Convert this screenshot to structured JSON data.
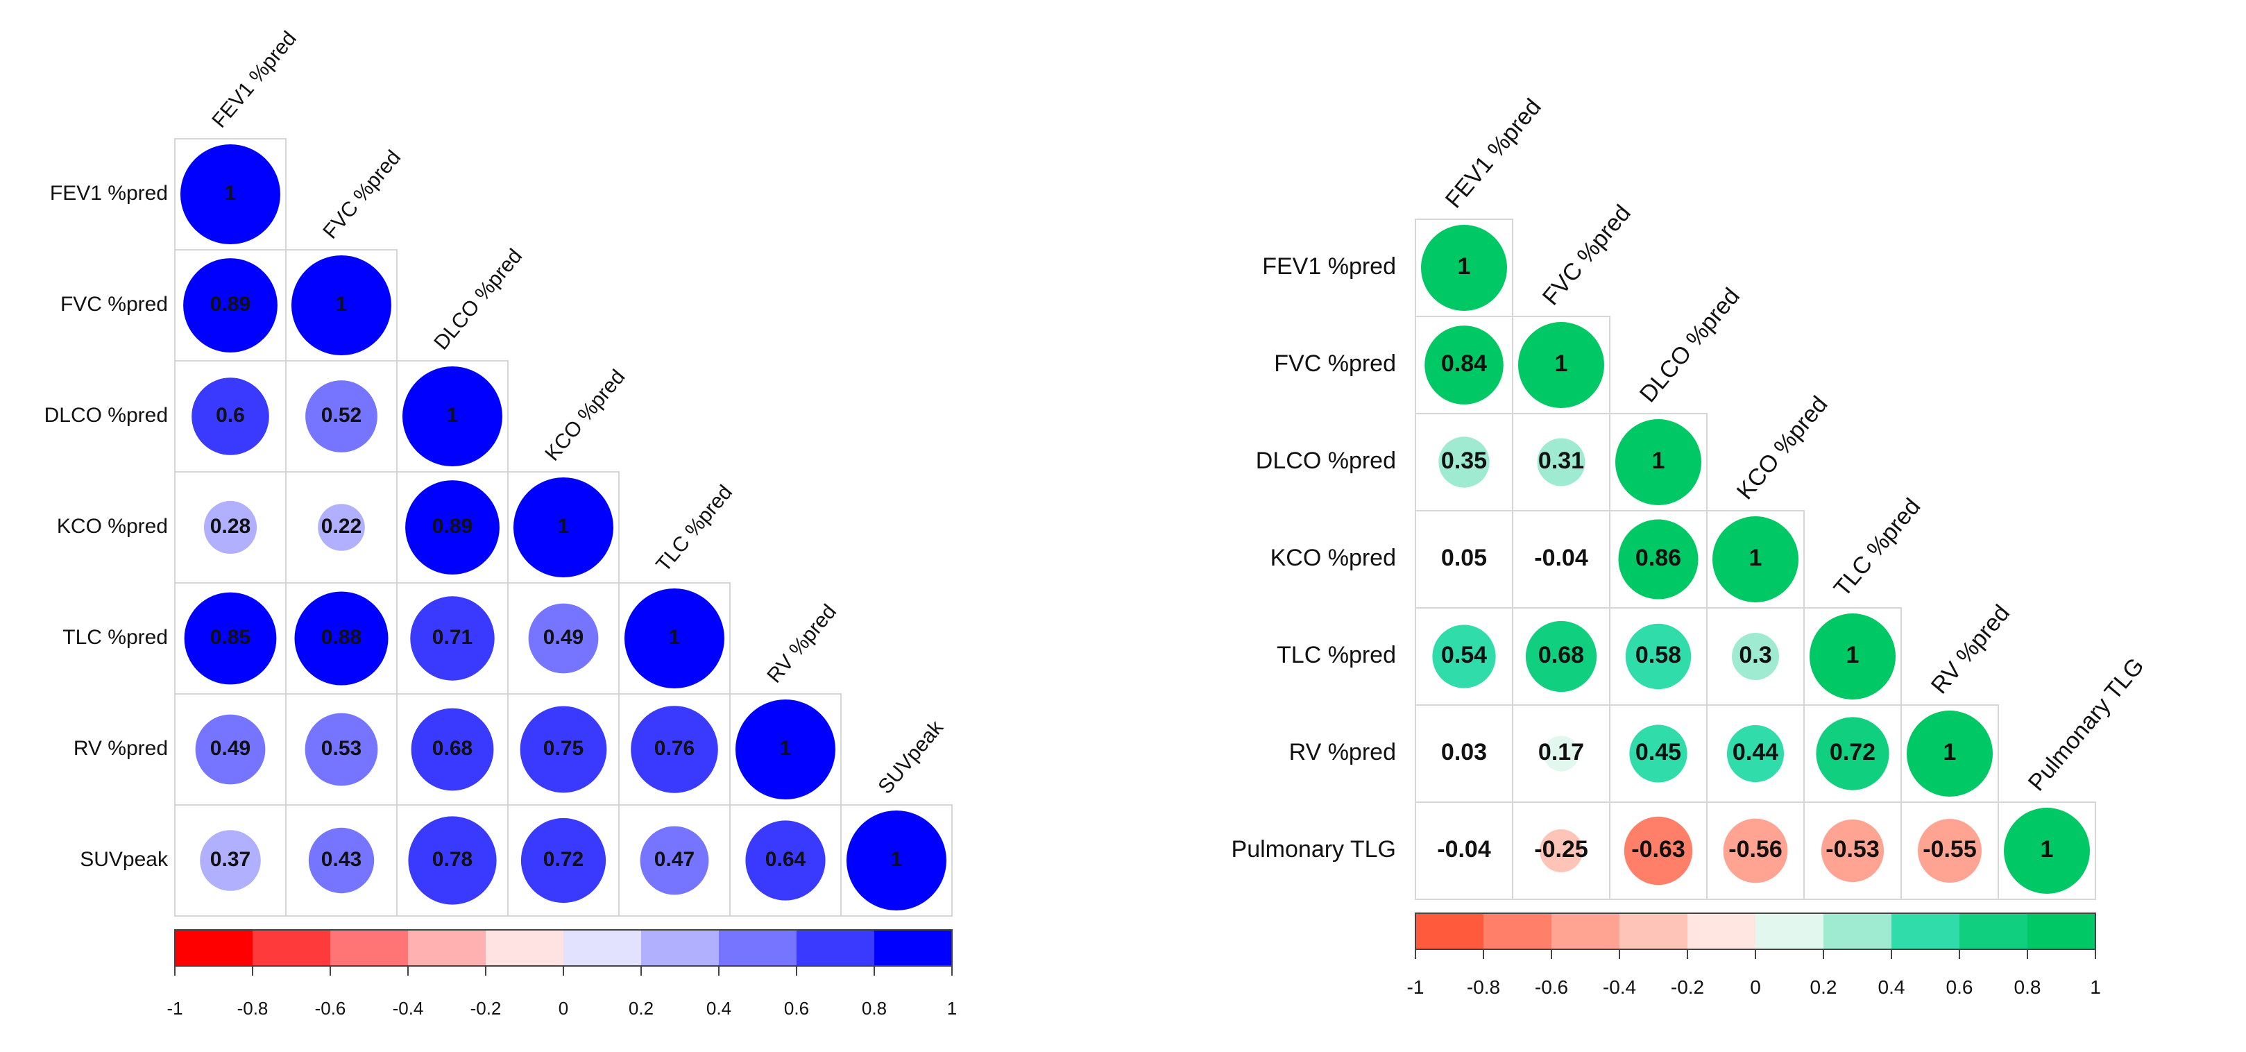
{
  "chart_data": [
    {
      "type": "heatmap",
      "subtype": "correlation-circle-matrix",
      "variables": [
        "FEV1 %pred",
        "FVC %pred",
        "DLCO %pred",
        "KCO %pred",
        "TLC %pred",
        "RV %pred",
        "SUVpeak"
      ],
      "matrix": [
        [
          1
        ],
        [
          0.89,
          1
        ],
        [
          0.6,
          0.52,
          1
        ],
        [
          0.28,
          0.22,
          0.89,
          1
        ],
        [
          0.85,
          0.88,
          0.71,
          0.49,
          1
        ],
        [
          0.49,
          0.53,
          0.68,
          0.75,
          0.76,
          1
        ],
        [
          0.37,
          0.43,
          0.78,
          0.72,
          0.47,
          0.64,
          1
        ]
      ],
      "cell_labels": [
        [
          "1"
        ],
        [
          "0.89",
          "1"
        ],
        [
          "0.6",
          "0.52",
          "1"
        ],
        [
          "0.28",
          "0.22",
          "0.89",
          "1"
        ],
        [
          "0.85",
          "0.88",
          "0.71",
          "0.49",
          "1"
        ],
        [
          "0.49",
          "0.53",
          "0.68",
          "0.75",
          "0.76",
          "1"
        ],
        [
          "0.37",
          "0.43",
          "0.78",
          "0.72",
          "0.47",
          "0.64",
          "1"
        ]
      ],
      "colorbar": {
        "range": [
          -1,
          1
        ],
        "ticks": [
          "-1",
          "-0.8",
          "-0.6",
          "-0.4",
          "-0.2",
          "0",
          "0.2",
          "0.4",
          "0.6",
          "0.8",
          "1"
        ],
        "bins": [
          "#ff0000",
          "#ff3a3a",
          "#ff7575",
          "#ffb0b0",
          "#ffe2e2",
          "#e2e2ff",
          "#b0b0ff",
          "#7575ff",
          "#3a3aff",
          "#0000ff"
        ]
      },
      "circle_min_value": 0.1
    },
    {
      "type": "heatmap",
      "subtype": "correlation-circle-matrix",
      "variables": [
        "FEV1 %pred",
        "FVC %pred",
        "DLCO %pred",
        "KCO %pred",
        "TLC %pred",
        "RV %pred",
        "Pulmonary TLG"
      ],
      "matrix": [
        [
          1
        ],
        [
          0.84,
          1
        ],
        [
          0.35,
          0.31,
          1
        ],
        [
          0.05,
          -0.04,
          0.86,
          1
        ],
        [
          0.54,
          0.68,
          0.58,
          0.3,
          1
        ],
        [
          0.03,
          0.17,
          0.45,
          0.44,
          0.72,
          1
        ],
        [
          -0.04,
          -0.25,
          -0.63,
          -0.56,
          -0.53,
          -0.55,
          1
        ]
      ],
      "cell_labels": [
        [
          "1"
        ],
        [
          "0.84",
          "1"
        ],
        [
          "0.35",
          "0.31",
          "1"
        ],
        [
          "0.05",
          "-0.04",
          "0.86",
          "1"
        ],
        [
          "0.54",
          "0.68",
          "0.58",
          "0.3",
          "1"
        ],
        [
          "0.03",
          "0.17",
          "0.45",
          "0.44",
          "0.72",
          "1"
        ],
        [
          "-0.04",
          "-0.25",
          "-0.63",
          "-0.56",
          "-0.53",
          "-0.55",
          "1"
        ]
      ],
      "colorbar": {
        "range": [
          -1,
          1
        ],
        "ticks": [
          "-1",
          "-0.8",
          "-0.6",
          "-0.4",
          "-0.2",
          "0",
          "0.2",
          "0.4",
          "0.6",
          "0.8",
          "1"
        ],
        "bins": [
          "#ff5a3c",
          "#ff7f68",
          "#ffa392",
          "#ffc4b8",
          "#ffe6e0",
          "#e2f8ee",
          "#9eebd2",
          "#2fdcaa",
          "#10d080",
          "#00c864"
        ]
      },
      "circle_min_value": 0.1
    }
  ]
}
